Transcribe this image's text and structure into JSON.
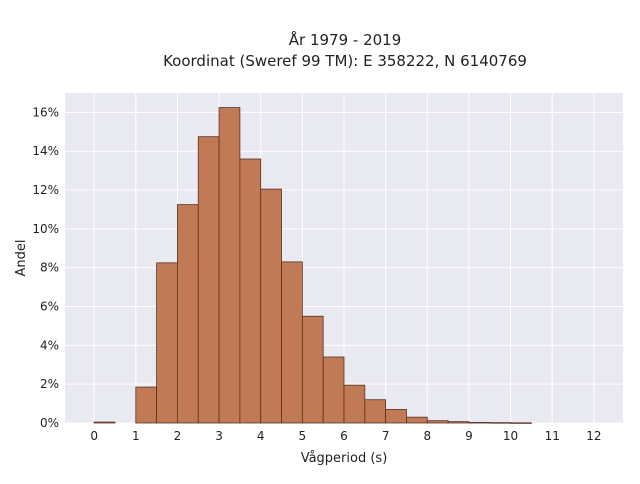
{
  "chart_data": {
    "type": "bar",
    "title_lines": [
      "År 1979 - 2019",
      "Koordinat (Sweref 99 TM): E 358222, N 6140769"
    ],
    "xlabel": "Vågperiod (s)",
    "ylabel": "Andel",
    "x_ticks": [
      0,
      1,
      2,
      3,
      4,
      5,
      6,
      7,
      8,
      9,
      10,
      11,
      12
    ],
    "x_tick_labels": [
      "0",
      "1",
      "2",
      "3",
      "4",
      "5",
      "6",
      "7",
      "8",
      "9",
      "10",
      "11",
      "12"
    ],
    "y_ticks": [
      0,
      2,
      4,
      6,
      8,
      10,
      12,
      14,
      16
    ],
    "y_tick_labels": [
      "0%",
      "2%",
      "4%",
      "6%",
      "8%",
      "10%",
      "12%",
      "14%",
      "16%"
    ],
    "xlim": [
      -0.7,
      12.7
    ],
    "ylim": [
      0,
      17.0
    ],
    "bin_width": 0.5,
    "bins": [
      {
        "start": 0.0,
        "value": 0.05
      },
      {
        "start": 0.5,
        "value": 0.0
      },
      {
        "start": 1.0,
        "value": 1.85
      },
      {
        "start": 1.5,
        "value": 8.25
      },
      {
        "start": 2.0,
        "value": 11.25
      },
      {
        "start": 2.5,
        "value": 14.75
      },
      {
        "start": 3.0,
        "value": 16.25
      },
      {
        "start": 3.5,
        "value": 13.6
      },
      {
        "start": 4.0,
        "value": 12.05
      },
      {
        "start": 4.5,
        "value": 8.3
      },
      {
        "start": 5.0,
        "value": 5.5
      },
      {
        "start": 5.5,
        "value": 3.4
      },
      {
        "start": 6.0,
        "value": 1.95
      },
      {
        "start": 6.5,
        "value": 1.2
      },
      {
        "start": 7.0,
        "value": 0.7
      },
      {
        "start": 7.5,
        "value": 0.3
      },
      {
        "start": 8.0,
        "value": 0.12
      },
      {
        "start": 8.5,
        "value": 0.07
      },
      {
        "start": 9.0,
        "value": 0.03
      },
      {
        "start": 9.5,
        "value": 0.02
      },
      {
        "start": 10.0,
        "value": 0.01
      }
    ],
    "grid": true,
    "colors": {
      "bar_fill": "#c07a55",
      "bar_edge": "#5a3322",
      "plot_background": "#e9e9f1",
      "grid": "#ffffff"
    }
  }
}
